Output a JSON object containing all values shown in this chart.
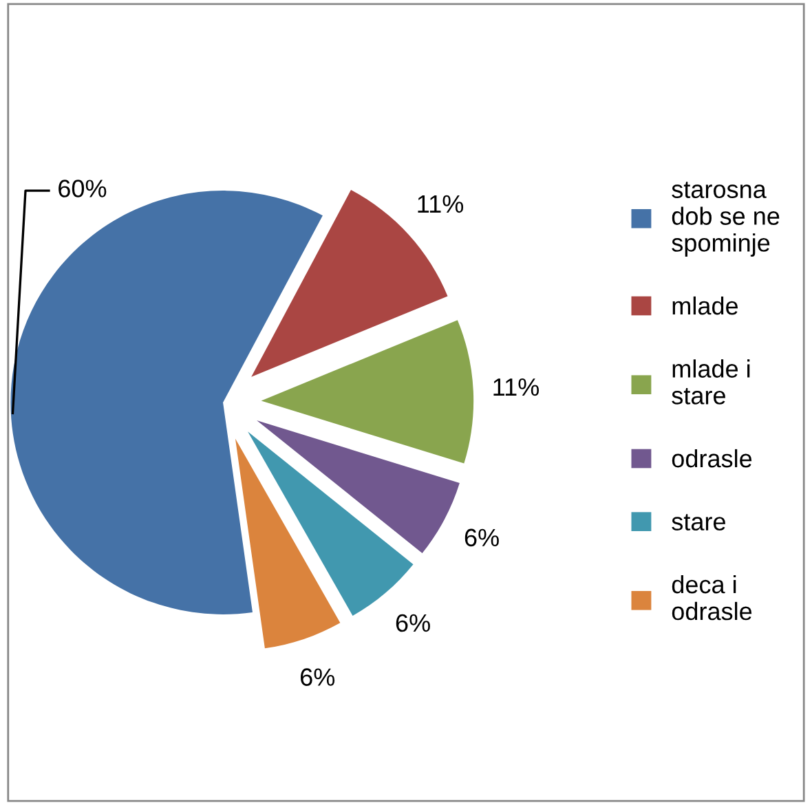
{
  "chart_data": {
    "type": "pie",
    "categories": [
      "starosna dob se ne spominje",
      "mlade",
      "mlade i stare",
      "odrasle",
      "stare",
      "deca i odrasle"
    ],
    "values": [
      60,
      11,
      11,
      6,
      6,
      6
    ],
    "value_labels": [
      "60%",
      "11%",
      "11%",
      "6%",
      "6%",
      "6%"
    ],
    "colors": [
      "#4572a7",
      "#aa4643",
      "#89a54e",
      "#71588f",
      "#4198af",
      "#db843d"
    ],
    "legend": "right"
  }
}
